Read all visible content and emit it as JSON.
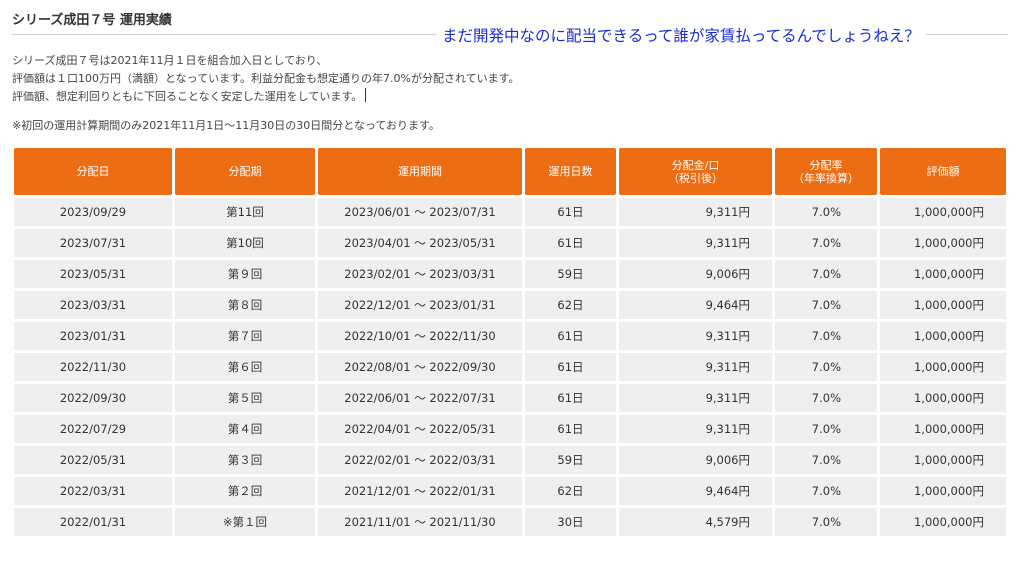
{
  "title": "シリーズ成田７号 運用実績",
  "comment": "まだ開発中なのに配当できるって誰が家賃払ってるんでしょうねえ？",
  "description": [
    "シリーズ成田７号は2021年11月１日を組合加入日としており、",
    "評価額は１口100万円（満額）となっています。利益分配金も想定通りの年7.0%が分配されています。",
    "評価額、想定利回りともに下回ることなく安定した運用をしています。"
  ],
  "note": "※初回の運用計算期間のみ2021年11月1日〜11月30日の30日間分となっております。",
  "table": {
    "headers": [
      [
        "分配日"
      ],
      [
        "分配期"
      ],
      [
        "運用期間"
      ],
      [
        "運用日数"
      ],
      [
        "分配金/口",
        "（税引後）"
      ],
      [
        "分配率",
        "（年率換算）"
      ],
      [
        "評価額"
      ]
    ],
    "rows": [
      [
        "2023/09/29",
        "第11回",
        "2023/06/01 〜 2023/07/31",
        "61日",
        "9,311円",
        "7.0%",
        "1,000,000円"
      ],
      [
        "2023/07/31",
        "第10回",
        "2023/04/01 〜 2023/05/31",
        "61日",
        "9,311円",
        "7.0%",
        "1,000,000円"
      ],
      [
        "2023/05/31",
        "第９回",
        "2023/02/01 〜 2023/03/31",
        "59日",
        "9,006円",
        "7.0%",
        "1,000,000円"
      ],
      [
        "2023/03/31",
        "第８回",
        "2022/12/01 〜 2023/01/31",
        "62日",
        "9,464円",
        "7.0%",
        "1,000,000円"
      ],
      [
        "2023/01/31",
        "第７回",
        "2022/10/01 〜 2022/11/30",
        "61日",
        "9,311円",
        "7.0%",
        "1,000,000円"
      ],
      [
        "2022/11/30",
        "第６回",
        "2022/08/01 〜 2022/09/30",
        "61日",
        "9,311円",
        "7.0%",
        "1,000,000円"
      ],
      [
        "2022/09/30",
        "第５回",
        "2022/06/01 〜 2022/07/31",
        "61日",
        "9,311円",
        "7.0%",
        "1,000,000円"
      ],
      [
        "2022/07/29",
        "第４回",
        "2022/04/01 〜 2022/05/31",
        "61日",
        "9,311円",
        "7.0%",
        "1,000,000円"
      ],
      [
        "2022/05/31",
        "第３回",
        "2022/02/01 〜 2022/03/31",
        "59日",
        "9,006円",
        "7.0%",
        "1,000,000円"
      ],
      [
        "2022/03/31",
        "第２回",
        "2021/12/01 〜 2022/01/31",
        "62日",
        "9,464円",
        "7.0%",
        "1,000,000円"
      ],
      [
        "2022/01/31",
        "※第１回",
        "2021/11/01 〜 2021/11/30",
        "30日",
        "4,579円",
        "7.0%",
        "1,000,000円"
      ]
    ]
  },
  "colors": {
    "header_bg": "#ec6d13",
    "row_bg": "#efefef",
    "comment_text": "#1a2bd6"
  }
}
